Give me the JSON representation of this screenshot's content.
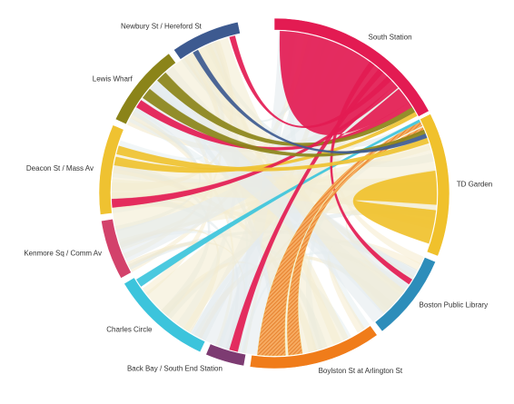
{
  "chart_data": {
    "type": "chord",
    "groups": [
      {
        "name": "South Station",
        "color": "#e31b52",
        "start_deg": 0,
        "end_deg": 62
      },
      {
        "name": "TD Garden",
        "color": "#f0c12c",
        "start_deg": 63,
        "end_deg": 111
      },
      {
        "name": "Boston Public Library",
        "color": "#2d8dba",
        "start_deg": 113,
        "end_deg": 142
      },
      {
        "name": "Boylston St at Arlington St",
        "color": "#f07c1a",
        "start_deg": 144,
        "end_deg": 188
      },
      {
        "name": "Back Bay / South End Station",
        "color": "#7d3b72",
        "start_deg": 190,
        "end_deg": 203
      },
      {
        "name": "Charles Circle",
        "color": "#3cc4dc",
        "start_deg": 205,
        "end_deg": 239
      },
      {
        "name": "Kenmore Sq / Comm Av",
        "color": "#d3426b",
        "start_deg": 241,
        "end_deg": 261
      },
      {
        "name": "Deacon St / Mass Av",
        "color": "#efc231",
        "start_deg": 263,
        "end_deg": 293
      },
      {
        "name": "Lewis Wharf",
        "color": "#8b8419",
        "start_deg": 295,
        "end_deg": 323
      },
      {
        "name": "Newbury St / Hereford St",
        "color": "#3d5a90",
        "start_deg": 325,
        "end_deg": 348
      }
    ],
    "chords": [
      {
        "source": 0,
        "s_from": 2,
        "s_to": 48,
        "target": 0,
        "t_from": 50,
        "t_to": 56,
        "style": "solid"
      },
      {
        "source": 1,
        "s_from": 82,
        "s_to": 94,
        "target": 1,
        "t_from": 96,
        "t_to": 108,
        "style": "solid"
      },
      {
        "source": 0,
        "s_from": 56,
        "s_to": 58,
        "target": 8,
        "t_from": 302,
        "t_to": 305,
        "style": "solid"
      },
      {
        "source": 8,
        "s_from": 314,
        "s_to": 318,
        "target": 0,
        "t_from": 58,
        "t_to": 60,
        "style": "solid"
      },
      {
        "source": 7,
        "s_from": 280,
        "s_to": 283,
        "target": 0,
        "t_from": 60,
        "t_to": 61.5,
        "style": "solid"
      },
      {
        "source": 0,
        "s_from": 48,
        "s_to": 49.5,
        "target": 7,
        "t_from": 265,
        "t_to": 268,
        "style": "solid"
      },
      {
        "source": 0,
        "s_from": 44,
        "s_to": 46,
        "target": 9,
        "t_from": 344,
        "t_to": 346,
        "style": "solid"
      },
      {
        "source": 5,
        "s_from": 235,
        "s_to": 238,
        "target": 1,
        "t_from": 63,
        "t_to": 64,
        "style": "solid"
      },
      {
        "source": 0,
        "s_from": 40,
        "s_to": 42,
        "target": 4,
        "t_from": 193,
        "t_to": 196,
        "style": "solid"
      },
      {
        "source": 0,
        "s_from": 36,
        "s_to": 38,
        "target": 2,
        "t_from": 122,
        "t_to": 124,
        "style": "solid"
      },
      {
        "source": 1,
        "s_from": 64,
        "s_to": 65.5,
        "target": 3,
        "t_from": 176,
        "t_to": 186,
        "style": "hatched"
      },
      {
        "source": 1,
        "s_from": 66,
        "s_to": 67.5,
        "target": 3,
        "t_from": 170,
        "t_to": 175,
        "style": "hatched"
      },
      {
        "source": 7,
        "s_from": 284,
        "s_to": 287,
        "target": 1,
        "t_from": 70,
        "t_to": 72,
        "style": "solid"
      },
      {
        "source": 8,
        "s_from": 306,
        "s_to": 310,
        "target": 1,
        "t_from": 67,
        "t_to": 68.5,
        "style": "solid"
      },
      {
        "source": 9,
        "s_from": 330,
        "s_to": 332,
        "target": 1,
        "t_from": 68.5,
        "t_to": 70,
        "style": "solid"
      }
    ],
    "title": "",
    "legend": "none"
  }
}
